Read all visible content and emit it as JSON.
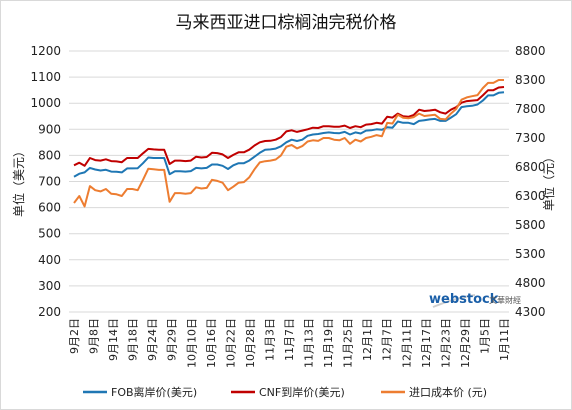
{
  "chart_data": {
    "type": "line",
    "title": "马来西亚进口棕榈油完税价格",
    "ylabel_left": "单位（美元）",
    "ylabel_right": "单位（元）",
    "y_left_lim": [
      200,
      1200
    ],
    "y_left_ticks": [
      200,
      300,
      400,
      500,
      600,
      700,
      800,
      900,
      1000,
      1100,
      1200
    ],
    "y_right_lim": [
      4300,
      8800
    ],
    "y_right_ticks": [
      4300,
      4800,
      5300,
      5800,
      6300,
      6800,
      7300,
      7800,
      8300,
      8800
    ],
    "x_tick_labels": [
      "9月2日",
      "9月8日",
      "9月14日",
      "9月18日",
      "9月24日",
      "9月29日",
      "10月10日",
      "10月16日",
      "10月22日",
      "10月28日",
      "11月3日",
      "11月7日",
      "11月13日",
      "11月19日",
      "11月25日",
      "12月1日",
      "12月7日",
      "12月11日",
      "12月17日",
      "12月23日",
      "12月29日",
      "1月5日",
      "1月11日"
    ],
    "grid": true,
    "legend_position": "bottom",
    "watermark": {
      "brand": "webstock",
      "suffix": "文華財經"
    },
    "series": [
      {
        "name": "FOB离岸价(美元)",
        "axis": "left",
        "color": "#1f77b4",
        "values": [
          718,
          730,
          735,
          752,
          746,
          742,
          745,
          738,
          737,
          735,
          750,
          750,
          751,
          770,
          792,
          790,
          790,
          790,
          728,
          739,
          739,
          738,
          740,
          752,
          750,
          752,
          765,
          765,
          760,
          748,
          762,
          770,
          770,
          780,
          795,
          810,
          822,
          823,
          826,
          835,
          850,
          860,
          855,
          860,
          875,
          880,
          882,
          886,
          888,
          886,
          885,
          890,
          880,
          888,
          884,
          895,
          896,
          900,
          898,
          908,
          906,
          930,
          925,
          925,
          920,
          932,
          935,
          938,
          940,
          932,
          932,
          945,
          958,
          985,
          988,
          990,
          995,
          1010,
          1030,
          1030,
          1040,
          1042
        ]
      },
      {
        "name": "CNF到岸价(美元)",
        "axis": "left",
        "color": "#c00000",
        "values": [
          762,
          772,
          760,
          790,
          782,
          780,
          785,
          778,
          777,
          774,
          790,
          790,
          790,
          808,
          825,
          823,
          822,
          822,
          767,
          780,
          780,
          778,
          780,
          795,
          792,
          794,
          810,
          809,
          804,
          790,
          802,
          812,
          812,
          822,
          838,
          850,
          855,
          856,
          860,
          870,
          892,
          896,
          890,
          895,
          900,
          906,
          905,
          912,
          912,
          910,
          910,
          914,
          905,
          912,
          908,
          918,
          920,
          925,
          922,
          948,
          945,
          960,
          950,
          948,
          955,
          975,
          970,
          972,
          975,
          965,
          960,
          975,
          985,
          1002,
          1008,
          1010,
          1012,
          1030,
          1050,
          1050,
          1060,
          1062
        ]
      },
      {
        "name": "进口成本价 (元)",
        "axis": "right",
        "color": "#ed7d31",
        "values": [
          6180,
          6300,
          6120,
          6470,
          6400,
          6380,
          6420,
          6340,
          6330,
          6300,
          6420,
          6420,
          6400,
          6580,
          6770,
          6760,
          6750,
          6750,
          6200,
          6350,
          6350,
          6340,
          6350,
          6450,
          6430,
          6440,
          6580,
          6560,
          6530,
          6400,
          6460,
          6530,
          6540,
          6620,
          6760,
          6880,
          6900,
          6910,
          6930,
          7000,
          7150,
          7180,
          7120,
          7160,
          7240,
          7260,
          7250,
          7300,
          7300,
          7270,
          7260,
          7300,
          7200,
          7270,
          7240,
          7300,
          7320,
          7350,
          7330,
          7560,
          7550,
          7700,
          7650,
          7640,
          7660,
          7720,
          7680,
          7690,
          7700,
          7630,
          7620,
          7720,
          7800,
          7960,
          8000,
          8020,
          8040,
          8160,
          8250,
          8250,
          8300,
          8300
        ]
      }
    ]
  }
}
